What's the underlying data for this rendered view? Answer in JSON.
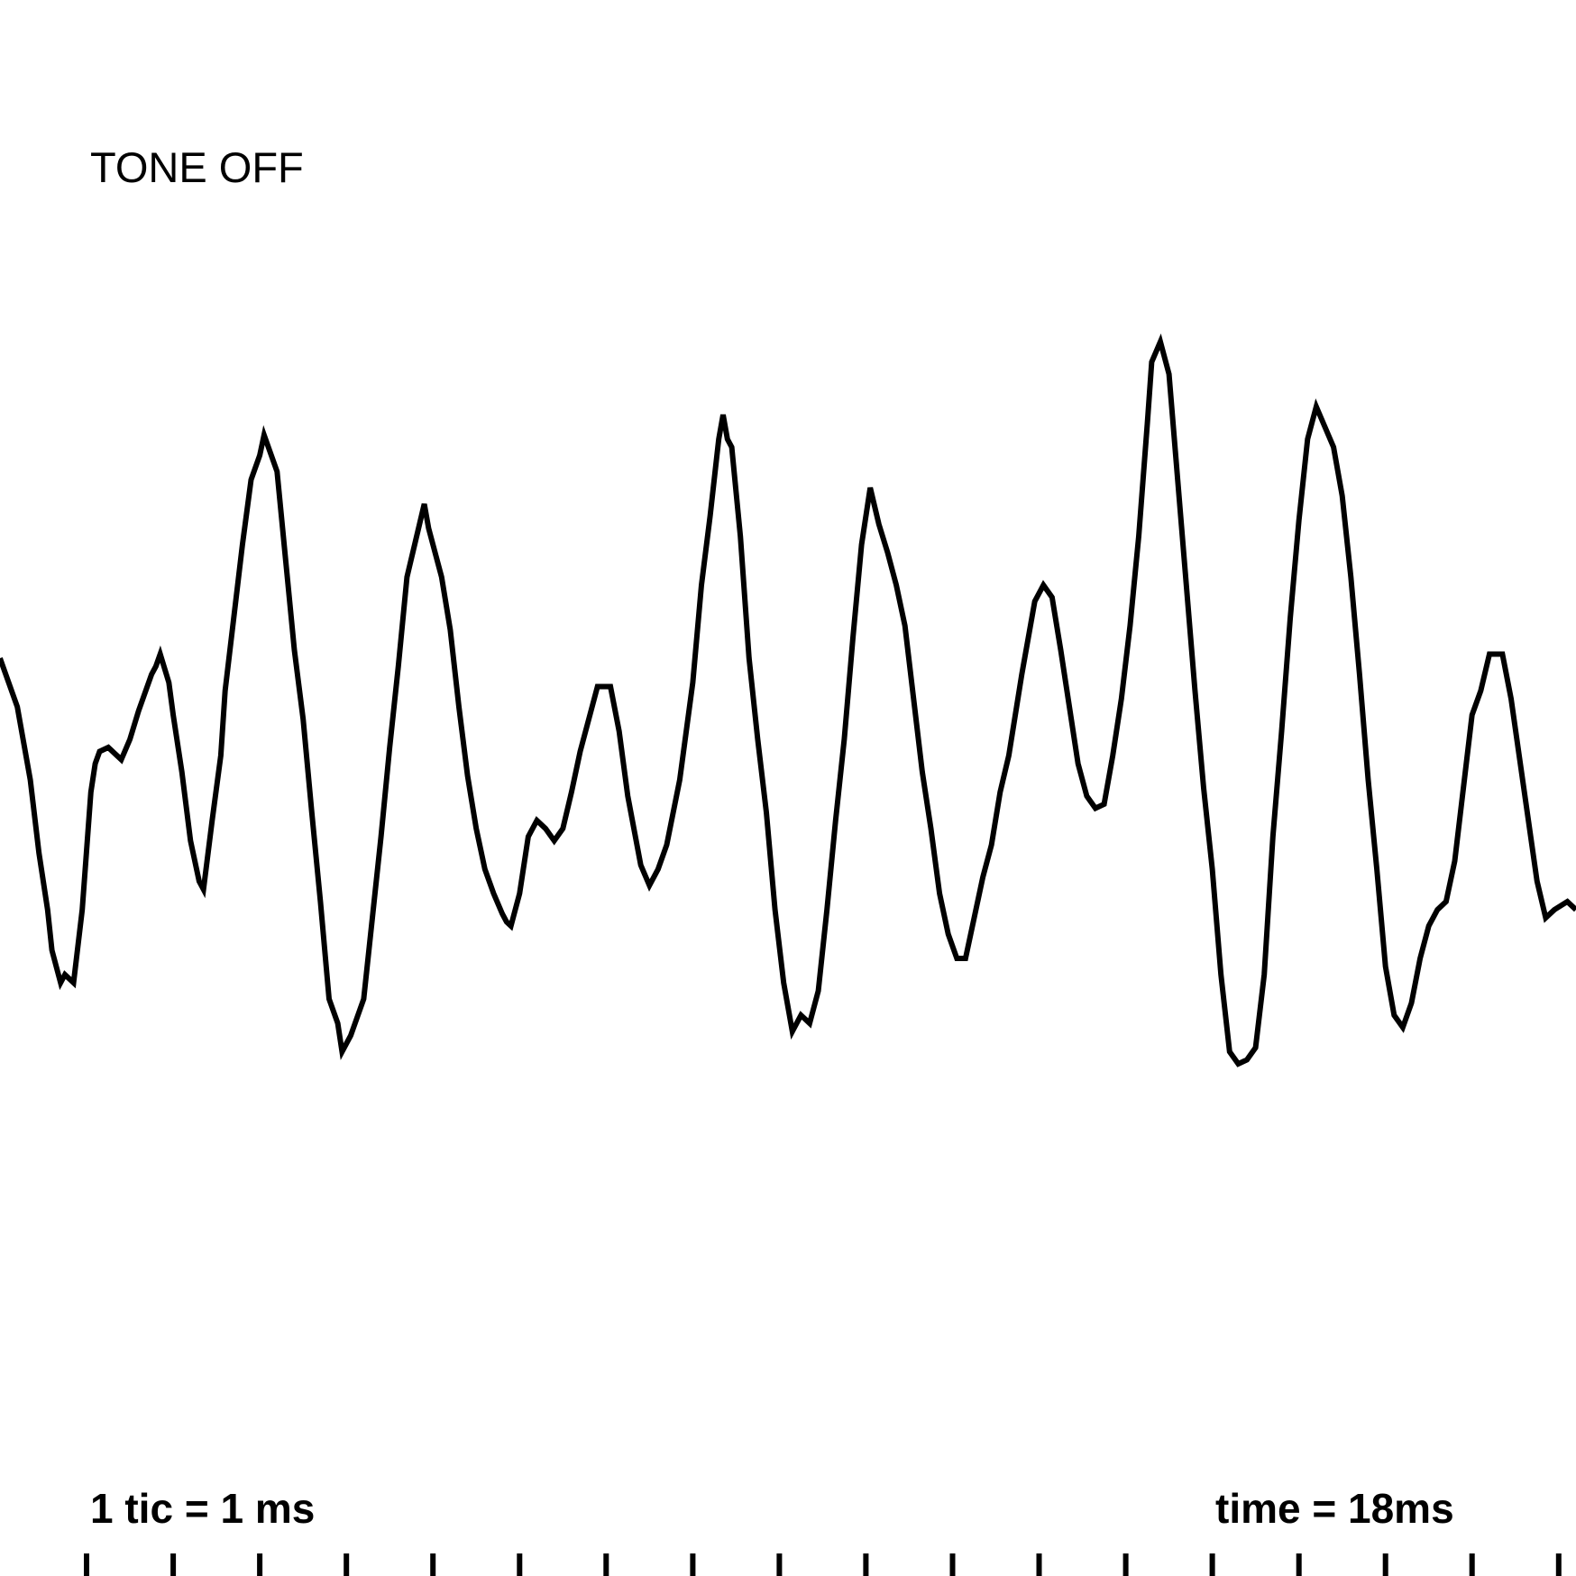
{
  "labels": {
    "tone_status": "TONE OFF",
    "scale": "1 tic = 1 ms",
    "time": "time = 18ms"
  },
  "colors": {
    "trace": "#000000",
    "background": "#ffffff"
  },
  "chart_data": {
    "type": "line",
    "title": "",
    "xlabel": "",
    "ylabel": "",
    "xlim": [
      0,
      18.2
    ],
    "ylim": [
      -1,
      1
    ],
    "grid": false,
    "x_tick_interval_ms": 1,
    "series": [
      {
        "values": [
          [
            0.0,
            0.0
          ],
          [
            0.1,
            -0.06
          ],
          [
            0.2,
            -0.12
          ],
          [
            0.25,
            -0.18
          ],
          [
            0.35,
            -0.3
          ],
          [
            0.45,
            -0.48
          ],
          [
            0.55,
            -0.62
          ],
          [
            0.6,
            -0.72
          ],
          [
            0.7,
            -0.8
          ],
          [
            0.75,
            -0.78
          ],
          [
            0.85,
            -0.8
          ],
          [
            0.95,
            -0.62
          ],
          [
            1.05,
            -0.33
          ],
          [
            1.1,
            -0.26
          ],
          [
            1.15,
            -0.23
          ],
          [
            1.25,
            -0.22
          ],
          [
            1.35,
            -0.24
          ],
          [
            1.4,
            -0.25
          ],
          [
            1.5,
            -0.2
          ],
          [
            1.6,
            -0.13
          ],
          [
            1.65,
            -0.1
          ],
          [
            1.75,
            -0.04
          ],
          [
            1.8,
            -0.02
          ],
          [
            1.85,
            0.01
          ],
          [
            1.95,
            -0.06
          ],
          [
            2.0,
            -0.14
          ],
          [
            2.1,
            -0.28
          ],
          [
            2.2,
            -0.45
          ],
          [
            2.3,
            -0.55
          ],
          [
            2.35,
            -0.57
          ],
          [
            2.45,
            -0.4
          ],
          [
            2.55,
            -0.24
          ],
          [
            2.6,
            -0.08
          ],
          [
            2.7,
            0.1
          ],
          [
            2.8,
            0.28
          ],
          [
            2.9,
            0.44
          ],
          [
            3.0,
            0.5
          ],
          [
            3.05,
            0.55
          ],
          [
            3.1,
            0.52
          ],
          [
            3.2,
            0.46
          ],
          [
            3.3,
            0.24
          ],
          [
            3.4,
            0.02
          ],
          [
            3.5,
            -0.15
          ],
          [
            3.6,
            -0.38
          ],
          [
            3.7,
            -0.6
          ],
          [
            3.8,
            -0.84
          ],
          [
            3.9,
            -0.9
          ],
          [
            3.95,
            -0.97
          ],
          [
            4.05,
            -0.93
          ],
          [
            4.1,
            -0.9
          ],
          [
            4.2,
            -0.84
          ],
          [
            4.3,
            -0.64
          ],
          [
            4.4,
            -0.44
          ],
          [
            4.5,
            -0.22
          ],
          [
            4.6,
            -0.02
          ],
          [
            4.7,
            0.2
          ],
          [
            4.8,
            0.29
          ],
          [
            4.9,
            0.38
          ],
          [
            4.95,
            0.32
          ],
          [
            5.0,
            0.28
          ],
          [
            5.1,
            0.2
          ],
          [
            5.2,
            0.07
          ],
          [
            5.3,
            -0.12
          ],
          [
            5.4,
            -0.29
          ],
          [
            5.5,
            -0.42
          ],
          [
            5.6,
            -0.52
          ],
          [
            5.7,
            -0.58
          ],
          [
            5.8,
            -0.63
          ],
          [
            5.85,
            -0.65
          ],
          [
            5.9,
            -0.66
          ],
          [
            6.0,
            -0.58
          ],
          [
            6.1,
            -0.44
          ],
          [
            6.2,
            -0.4
          ],
          [
            6.3,
            -0.42
          ],
          [
            6.4,
            -0.45
          ],
          [
            6.5,
            -0.42
          ],
          [
            6.6,
            -0.33
          ],
          [
            6.7,
            -0.23
          ],
          [
            6.8,
            -0.15
          ],
          [
            6.9,
            -0.07
          ],
          [
            7.05,
            -0.07
          ],
          [
            7.15,
            -0.18
          ],
          [
            7.25,
            -0.34
          ],
          [
            7.4,
            -0.51
          ],
          [
            7.5,
            -0.56
          ],
          [
            7.6,
            -0.52
          ],
          [
            7.7,
            -0.46
          ],
          [
            7.85,
            -0.3
          ],
          [
            8.0,
            -0.06
          ],
          [
            8.1,
            0.18
          ],
          [
            8.2,
            0.35
          ],
          [
            8.3,
            0.54
          ],
          [
            8.35,
            0.6
          ],
          [
            8.4,
            0.54
          ],
          [
            8.45,
            0.52
          ],
          [
            8.55,
            0.3
          ],
          [
            8.65,
            0.0
          ],
          [
            8.75,
            -0.2
          ],
          [
            8.85,
            -0.38
          ],
          [
            8.95,
            -0.62
          ],
          [
            9.05,
            -0.8
          ],
          [
            9.15,
            -0.92
          ],
          [
            9.25,
            -0.88
          ],
          [
            9.35,
            -0.9
          ],
          [
            9.45,
            -0.82
          ],
          [
            9.55,
            -0.62
          ],
          [
            9.65,
            -0.4
          ],
          [
            9.75,
            -0.2
          ],
          [
            9.85,
            0.05
          ],
          [
            9.95,
            0.28
          ],
          [
            10.05,
            0.42
          ],
          [
            10.15,
            0.33
          ],
          [
            10.25,
            0.26
          ],
          [
            10.35,
            0.18
          ],
          [
            10.45,
            0.08
          ],
          [
            10.55,
            -0.1
          ],
          [
            10.65,
            -0.28
          ],
          [
            10.75,
            -0.42
          ],
          [
            10.85,
            -0.58
          ],
          [
            10.95,
            -0.68
          ],
          [
            11.05,
            -0.74
          ],
          [
            11.15,
            -0.74
          ],
          [
            11.25,
            -0.64
          ],
          [
            11.35,
            -0.54
          ],
          [
            11.45,
            -0.46
          ],
          [
            11.55,
            -0.33
          ],
          [
            11.65,
            -0.24
          ],
          [
            11.8,
            -0.04
          ],
          [
            11.95,
            0.14
          ],
          [
            12.05,
            0.18
          ],
          [
            12.15,
            0.15
          ],
          [
            12.25,
            0.02
          ],
          [
            12.35,
            -0.12
          ],
          [
            12.45,
            -0.26
          ],
          [
            12.55,
            -0.34
          ],
          [
            12.65,
            -0.37
          ],
          [
            12.75,
            -0.36
          ],
          [
            12.85,
            -0.24
          ],
          [
            12.95,
            -0.1
          ],
          [
            13.05,
            0.08
          ],
          [
            13.15,
            0.3
          ],
          [
            13.25,
            0.58
          ],
          [
            13.3,
            0.73
          ],
          [
            13.4,
            0.78
          ],
          [
            13.5,
            0.7
          ],
          [
            13.6,
            0.44
          ],
          [
            13.7,
            0.18
          ],
          [
            13.8,
            -0.08
          ],
          [
            13.9,
            -0.32
          ],
          [
            14.0,
            -0.52
          ],
          [
            14.1,
            -0.78
          ],
          [
            14.2,
            -0.97
          ],
          [
            14.3,
            -1.0
          ],
          [
            14.4,
            -0.99
          ],
          [
            14.5,
            -0.96
          ],
          [
            14.6,
            -0.78
          ],
          [
            14.7,
            -0.44
          ],
          [
            14.8,
            -0.18
          ],
          [
            14.9,
            0.1
          ],
          [
            15.0,
            0.34
          ],
          [
            15.1,
            0.54
          ],
          [
            15.2,
            0.62
          ],
          [
            15.3,
            0.57
          ],
          [
            15.4,
            0.52
          ],
          [
            15.5,
            0.4
          ],
          [
            15.6,
            0.2
          ],
          [
            15.7,
            -0.04
          ],
          [
            15.8,
            -0.3
          ],
          [
            15.9,
            -0.52
          ],
          [
            16.0,
            -0.76
          ],
          [
            16.1,
            -0.88
          ],
          [
            16.2,
            -0.91
          ],
          [
            16.3,
            -0.85
          ],
          [
            16.4,
            -0.74
          ],
          [
            16.5,
            -0.66
          ],
          [
            16.6,
            -0.62
          ],
          [
            16.7,
            -0.6
          ],
          [
            16.8,
            -0.5
          ],
          [
            16.9,
            -0.32
          ],
          [
            17.0,
            -0.14
          ],
          [
            17.1,
            -0.08
          ],
          [
            17.2,
            0.01
          ],
          [
            17.35,
            0.01
          ],
          [
            17.45,
            -0.1
          ],
          [
            17.55,
            -0.25
          ],
          [
            17.65,
            -0.4
          ],
          [
            17.75,
            -0.55
          ],
          [
            17.85,
            -0.64
          ],
          [
            17.95,
            -0.62
          ],
          [
            18.1,
            -0.6
          ],
          [
            18.2,
            -0.62
          ]
        ]
      }
    ]
  }
}
